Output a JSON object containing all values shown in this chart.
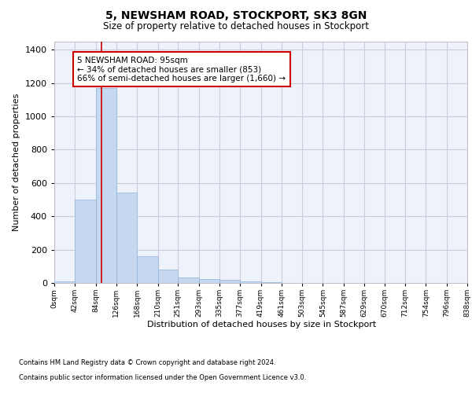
{
  "title1": "5, NEWSHAM ROAD, STOCKPORT, SK3 8GN",
  "title2": "Size of property relative to detached houses in Stockport",
  "xlabel": "Distribution of detached houses by size in Stockport",
  "ylabel": "Number of detached properties",
  "footnote1": "Contains HM Land Registry data © Crown copyright and database right 2024.",
  "footnote2": "Contains public sector information licensed under the Open Government Licence v3.0.",
  "bin_edges": [
    0,
    42,
    84,
    126,
    168,
    210,
    251,
    293,
    335,
    377,
    419,
    461,
    503,
    545,
    587,
    629,
    670,
    712,
    754,
    796,
    838
  ],
  "bar_heights": [
    10,
    500,
    1170,
    540,
    160,
    80,
    35,
    25,
    18,
    10,
    5,
    2,
    0,
    0,
    0,
    0,
    0,
    0,
    0,
    0
  ],
  "bar_color": "#C5D8F0",
  "bar_edge_color": "#8EB4D8",
  "grid_color": "#CCCCDD",
  "background_color": "#EEF2FA",
  "red_line_x": 95,
  "annotation_text": "5 NEWSHAM ROAD: 95sqm\n← 34% of detached houses are smaller (853)\n66% of semi-detached houses are larger (1,660) →",
  "annotation_box_color": "#FFFFFF",
  "annotation_border_color": "#CC0000",
  "ylim": [
    0,
    1450
  ],
  "yticks": [
    0,
    200,
    400,
    600,
    800,
    1000,
    1200,
    1400
  ],
  "tick_labels": [
    "0sqm",
    "42sqm",
    "84sqm",
    "126sqm",
    "168sqm",
    "210sqm",
    "251sqm",
    "293sqm",
    "335sqm",
    "377sqm",
    "419sqm",
    "461sqm",
    "503sqm",
    "545sqm",
    "587sqm",
    "629sqm",
    "670sqm",
    "712sqm",
    "754sqm",
    "796sqm",
    "838sqm"
  ]
}
